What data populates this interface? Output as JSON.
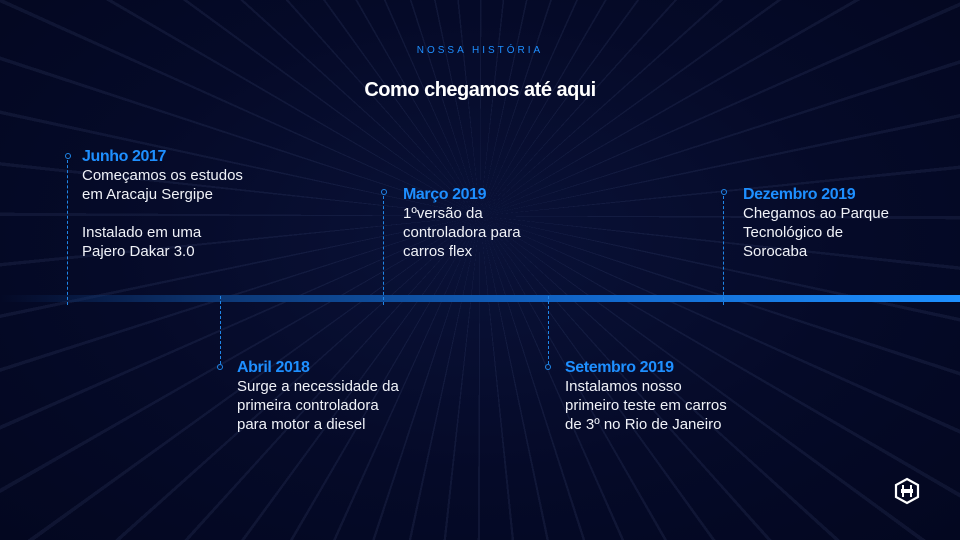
{
  "header": {
    "eyebrow": "NOSSA HISTÓRIA",
    "title": "Como chegamos até aqui"
  },
  "events": [
    {
      "date": "Junho 2017",
      "text": "Começamos os estudos\nem Aracaju Sergipe\n\nInstalado em uma\nPajero Dakar 3.0"
    },
    {
      "date": "Abril 2018",
      "text": "Surge a necessidade da\nprimeira controladora\npara motor a diesel"
    },
    {
      "date": "Março 2019",
      "text": "1ºversão da\ncontroladora para\ncarros flex"
    },
    {
      "date": "Setembro 2019",
      "text": "Instalamos nosso\nprimeiro teste em carros\nde 3º no Rio de Janeiro"
    },
    {
      "date": "Dezembro 2019",
      "text": "Chegamos ao Parque\nTecnológico de\nSorocaba"
    }
  ],
  "colors": {
    "accent": "#1e8fff",
    "background": "#050a28"
  },
  "logo": {
    "icon": "hexagon-h-logo"
  }
}
